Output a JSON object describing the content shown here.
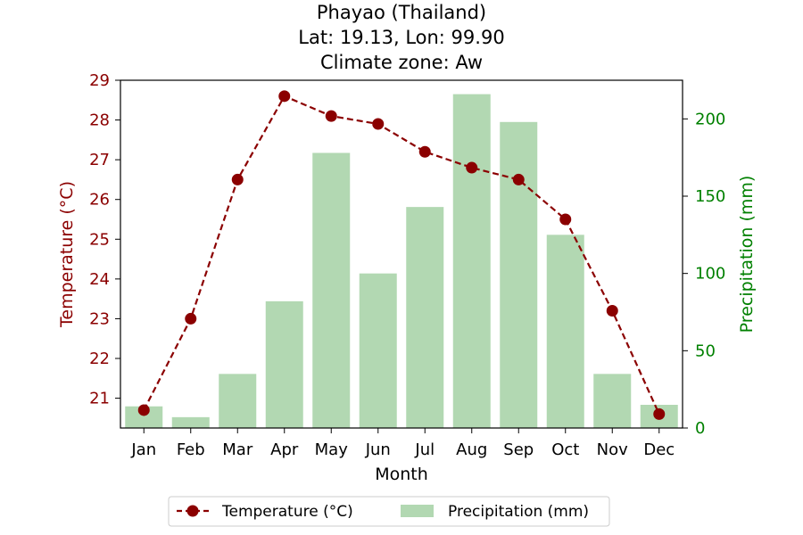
{
  "chart_data": {
    "type": "bar+line",
    "title_lines": [
      "Phayao (Thailand)",
      "Lat: 19.13, Lon: 99.90",
      "Climate zone: Aw"
    ],
    "xlabel": "Month",
    "categories": [
      "Jan",
      "Feb",
      "Mar",
      "Apr",
      "May",
      "Jun",
      "Jul",
      "Aug",
      "Sep",
      "Oct",
      "Nov",
      "Dec"
    ],
    "temperature": {
      "name": "Temperature (°C)",
      "axis_label": "Temperature (°C)",
      "values": [
        20.7,
        23.0,
        26.5,
        28.6,
        28.1,
        27.9,
        27.2,
        26.8,
        26.5,
        25.5,
        23.2,
        20.6
      ],
      "ylim": [
        20.25,
        29.0
      ],
      "ticks": [
        21,
        22,
        23,
        24,
        25,
        26,
        27,
        28,
        29
      ],
      "color": "#8b0000",
      "style": "dashed line with circle markers"
    },
    "precipitation": {
      "name": "Precipitation (mm)",
      "axis_label": "Precipitation (mm)",
      "values": [
        14,
        7,
        35,
        82,
        178,
        100,
        143,
        216,
        198,
        125,
        35,
        15
      ],
      "ylim": [
        0,
        225
      ],
      "ticks": [
        0,
        50,
        100,
        150,
        200
      ],
      "color": "#008000",
      "bar_color": "#b2d8b2"
    },
    "legend": "bottom-center",
    "grid": false
  }
}
